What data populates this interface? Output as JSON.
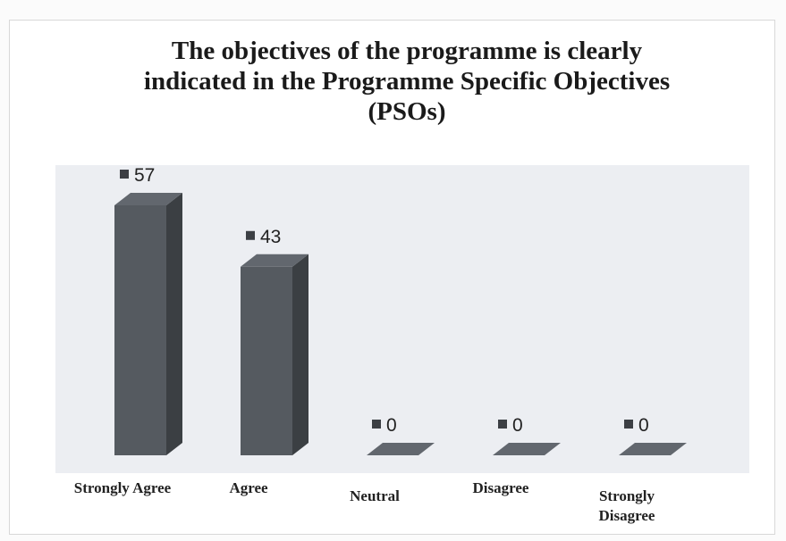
{
  "chart_data": {
    "type": "bar3d",
    "title": "The objectives of the programme is clearly indicated in the Programme Specific Objectives (PSOs)",
    "categories": [
      "Strongly Agree",
      "Agree",
      "Neutral",
      "Disagree",
      "Strongly Disagree"
    ],
    "values": [
      57,
      43,
      0,
      0,
      0
    ],
    "color": "#555a60"
  }
}
